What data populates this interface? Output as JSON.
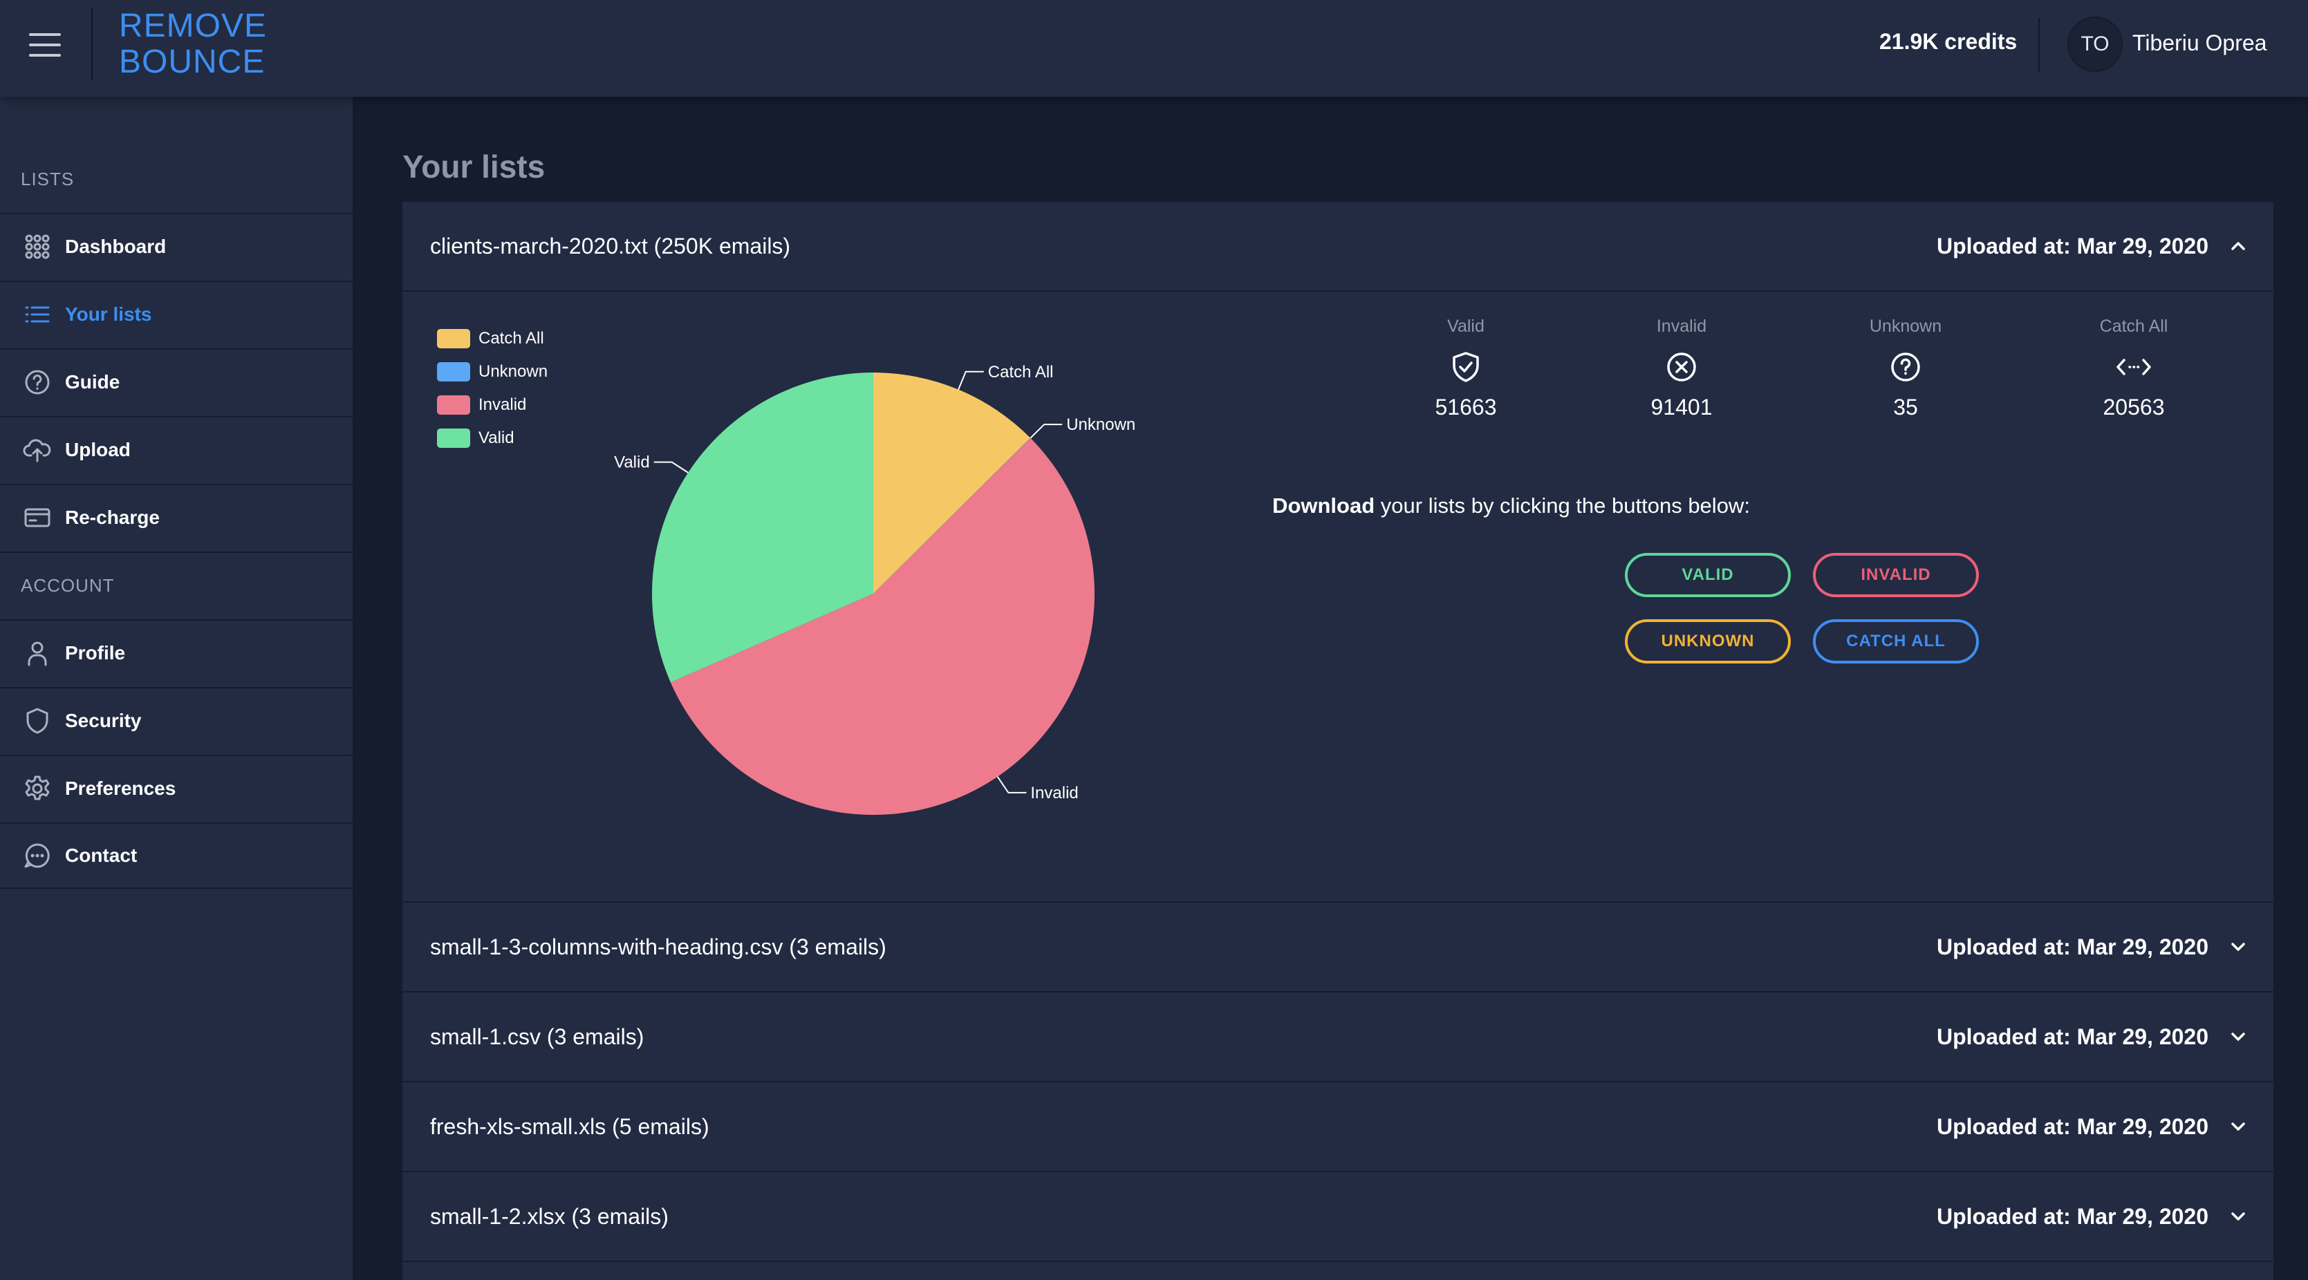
{
  "header": {
    "logo_line1": "REMOVE",
    "logo_line2": "BOUNCE",
    "credits": "21.9K credits",
    "user_initials": "TO",
    "user_name": "Tiberiu Oprea"
  },
  "sidebar": {
    "lists_heading": "LISTS",
    "account_heading": "ACCOUNT",
    "items": [
      {
        "label": "Dashboard",
        "icon": "grid-icon"
      },
      {
        "label": "Your lists",
        "icon": "list-icon",
        "active": true
      },
      {
        "label": "Guide",
        "icon": "question-circle-icon"
      },
      {
        "label": "Upload",
        "icon": "cloud-upload-icon"
      },
      {
        "label": "Re-charge",
        "icon": "credit-card-icon"
      },
      {
        "label": "Profile",
        "icon": "user-icon"
      },
      {
        "label": "Security",
        "icon": "shield-icon"
      },
      {
        "label": "Preferences",
        "icon": "gear-icon"
      },
      {
        "label": "Contact",
        "icon": "chat-icon"
      }
    ]
  },
  "main": {
    "title": "Your lists",
    "expanded": {
      "file_name": "clients-march-2020.txt (250K emails)",
      "uploaded": "Uploaded at: Mar 29, 2020",
      "stats": [
        {
          "label": "Valid",
          "value": "51663",
          "icon": "shield-check-icon"
        },
        {
          "label": "Invalid",
          "value": "91401",
          "icon": "x-circle-icon"
        },
        {
          "label": "Unknown",
          "value": "35",
          "icon": "question-circle-icon"
        },
        {
          "label": "Catch All",
          "value": "20563",
          "icon": "code-arrows-icon"
        }
      ],
      "download_bold": "Download",
      "download_rest": " your lists by clicking the buttons below:",
      "buttons": {
        "valid": "VALID",
        "invalid": "INVALID",
        "unknown": "UNKNOWN",
        "catch_all": "CATCH ALL"
      }
    },
    "collapsed": [
      {
        "file_name": "small-1-3-columns-with-heading.csv (3 emails)",
        "uploaded": "Uploaded at: Mar 29, 2020"
      },
      {
        "file_name": "small-1.csv (3 emails)",
        "uploaded": "Uploaded at: Mar 29, 2020"
      },
      {
        "file_name": "fresh-xls-small.xls (5 emails)",
        "uploaded": "Uploaded at: Mar 29, 2020"
      },
      {
        "file_name": "small-1-2.xlsx (3 emails)",
        "uploaded": "Uploaded at: Mar 29, 2020"
      }
    ]
  },
  "colors": {
    "valid": "#6ee2a0",
    "invalid": "#ee7a8e",
    "unknown": "#5ca7f7",
    "catch_all": "#f6c865",
    "accent": "#3d8ef0",
    "btn_valid": "#5fd697",
    "btn_invalid": "#ec5f7a",
    "btn_unknown": "#f3b233",
    "btn_catch_all": "#3f8ef2"
  },
  "chart_data": {
    "type": "pie",
    "categories": [
      "Catch All",
      "Unknown",
      "Invalid",
      "Valid"
    ],
    "values": [
      20563,
      35,
      91401,
      51663
    ],
    "legend": [
      "Catch All",
      "Unknown",
      "Invalid",
      "Valid"
    ],
    "legend_position": "top-left",
    "start_angle": "12 o'clock, clockwise"
  }
}
